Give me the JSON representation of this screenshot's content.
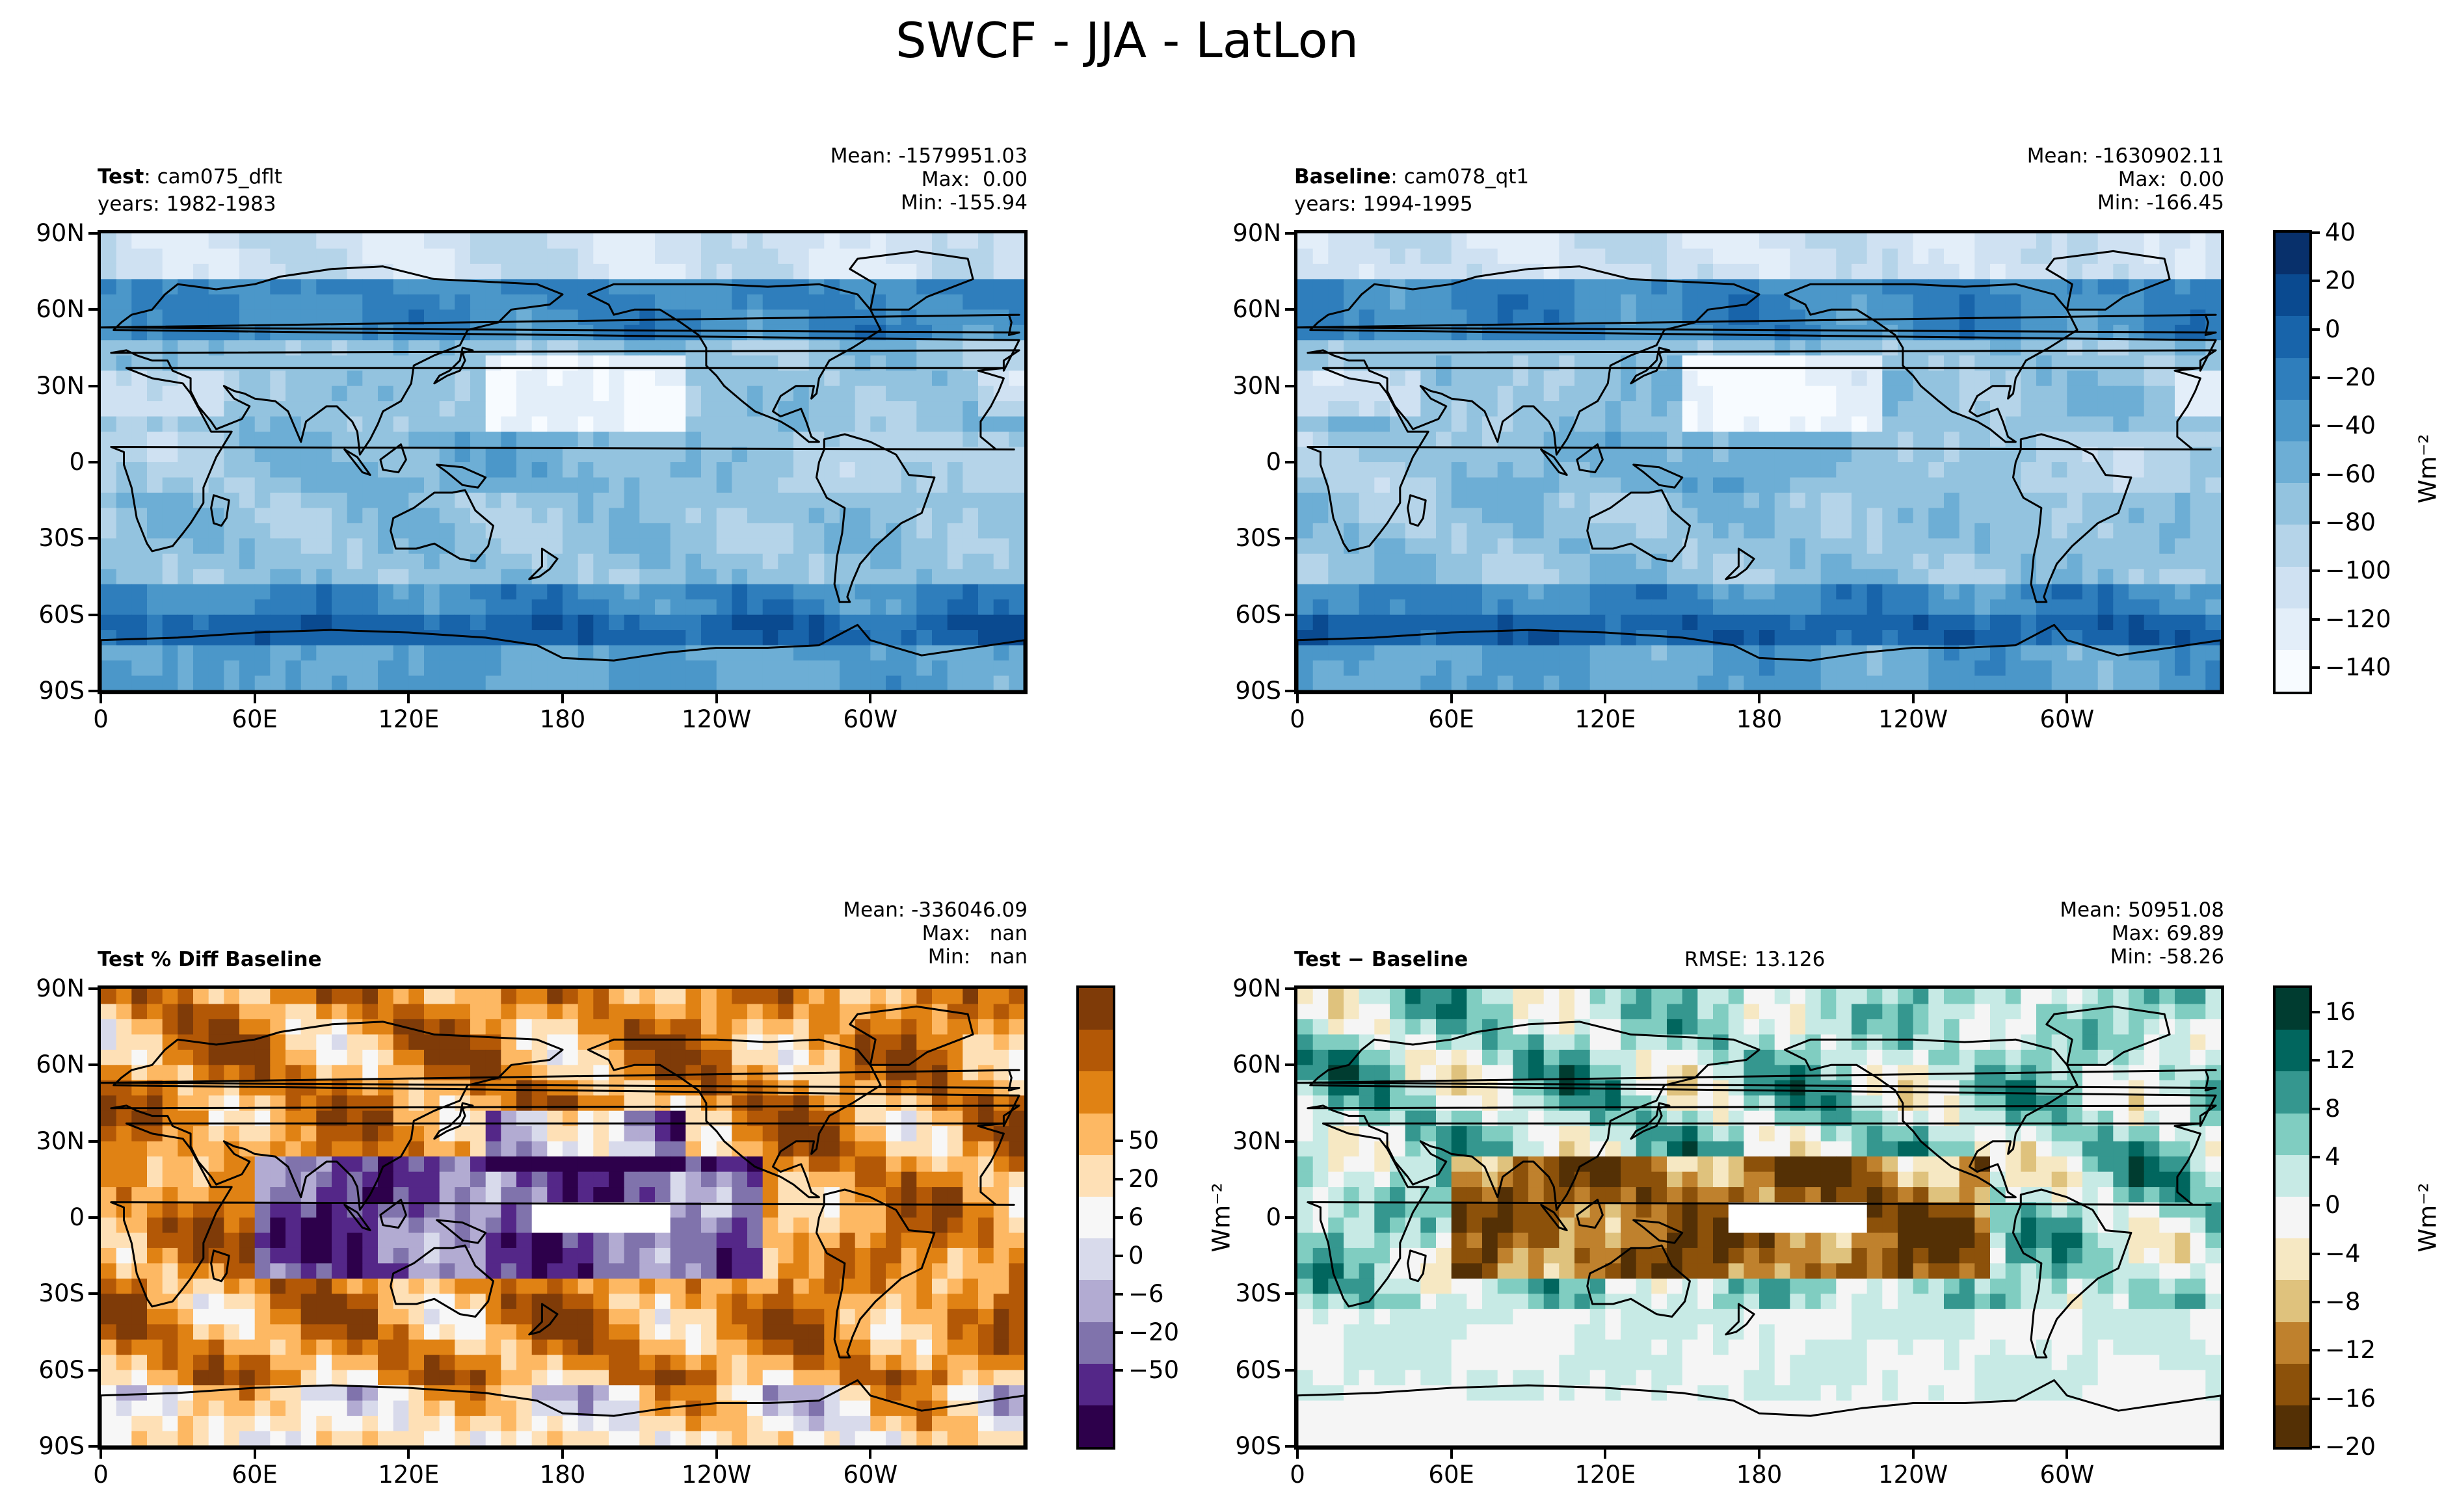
{
  "figure": {
    "title": "SWCF - JJA - LatLon"
  },
  "colors": {
    "test_base_scale": [
      "#f7fbff",
      "#e3eef9",
      "#cfe1f2",
      "#b5d4e9",
      "#93c3df",
      "#6daed5",
      "#4b97c9",
      "#2f7ebc",
      "#1864aa",
      "#0a4a90",
      "#08306b"
    ],
    "pct_diff_scale": [
      "#2d004b",
      "#542788",
      "#8073ac",
      "#b2abd2",
      "#d8daeb",
      "#f7f7f7",
      "#fee0b6",
      "#fdb863",
      "#e08214",
      "#b35806",
      "#7f3b08"
    ],
    "diff_scale": [
      "#543005",
      "#8c510a",
      "#bf812d",
      "#dfc27d",
      "#f6e8c3",
      "#f5f5f5",
      "#c7eae5",
      "#80cdc1",
      "#35978f",
      "#01665e",
      "#003c30"
    ]
  },
  "chart_data": [
    {
      "type": "heatmap",
      "panel": "test",
      "label_bold": "Test",
      "label_sep": ": ",
      "label_name": "cam075_dflt",
      "years": "years: 1982-1983",
      "stats": {
        "mean": "Mean: -1579951.03",
        "max": "Max:  0.00",
        "min": "Min: -155.94"
      },
      "xticks": [
        "0",
        "60E",
        "120E",
        "180",
        "120W",
        "60W"
      ],
      "yticks": [
        "90N",
        "60N",
        "30N",
        "0",
        "30S",
        "60S",
        "90S"
      ],
      "xlim": [
        0,
        360
      ],
      "ylim": [
        -90,
        90
      ]
    },
    {
      "type": "heatmap",
      "panel": "baseline",
      "label_bold": "Baseline",
      "label_sep": ": ",
      "label_name": "cam078_qt1",
      "years": "years: 1994-1995",
      "stats": {
        "mean": "Mean: -1630902.11",
        "max": "Max:  0.00",
        "min": "Min: -166.45"
      },
      "xticks": [
        "0",
        "60E",
        "120E",
        "180",
        "120W",
        "60W"
      ],
      "yticks": [
        "90N",
        "60N",
        "30N",
        "0",
        "30S",
        "60S",
        "90S"
      ],
      "xlim": [
        0,
        360
      ],
      "ylim": [
        -90,
        90
      ],
      "colorbar": {
        "ticks": [
          "40",
          "20",
          "0",
          "−20",
          "−40",
          "−60",
          "−80",
          "−100",
          "−120",
          "−140"
        ],
        "tick_values": [
          40,
          20,
          0,
          -20,
          -40,
          -60,
          -80,
          -100,
          -120,
          -140
        ],
        "range": [
          -150,
          40
        ],
        "unit": "Wm⁻²"
      }
    },
    {
      "type": "heatmap",
      "panel": "pct_diff",
      "label_bold": "Test % Diff Baseline",
      "stats": {
        "mean": "Mean: -336046.09",
        "max": "Max:   nan",
        "min": "Min:   nan"
      },
      "xticks": [
        "0",
        "60E",
        "120E",
        "180",
        "120W",
        "60W"
      ],
      "yticks": [
        "90N",
        "60N",
        "30N",
        "0",
        "30S",
        "60S",
        "90S"
      ],
      "xlim": [
        0,
        360
      ],
      "ylim": [
        -90,
        90
      ],
      "colorbar": {
        "ticks": [
          "50",
          "20",
          "6",
          "0",
          "−6",
          "−20",
          "−50"
        ],
        "levels": [
          "-inf",
          -50,
          -20,
          -6,
          0,
          6,
          20,
          50,
          "inf"
        ]
      }
    },
    {
      "type": "heatmap",
      "panel": "diff",
      "label_bold": "Test − Baseline",
      "rmse": "RMSE: 13.126",
      "stats": {
        "mean": "Mean: 50951.08",
        "max": "Max: 69.89",
        "min": "Min: -58.26"
      },
      "xticks": [
        "0",
        "60E",
        "120E",
        "180",
        "120W",
        "60W"
      ],
      "yticks": [
        "90N",
        "60N",
        "30N",
        "0",
        "30S",
        "60S",
        "90S"
      ],
      "xlim": [
        0,
        360
      ],
      "ylim": [
        -90,
        90
      ],
      "ylabel": "Wm⁻²",
      "colorbar": {
        "ticks": [
          "16",
          "12",
          "8",
          "4",
          "0",
          "−4",
          "−8",
          "−12",
          "−16",
          "−20"
        ],
        "tick_values": [
          16,
          12,
          8,
          4,
          0,
          -4,
          -8,
          -12,
          -16,
          -20
        ],
        "range": [
          -20,
          18
        ],
        "unit": "Wm⁻²"
      }
    }
  ]
}
